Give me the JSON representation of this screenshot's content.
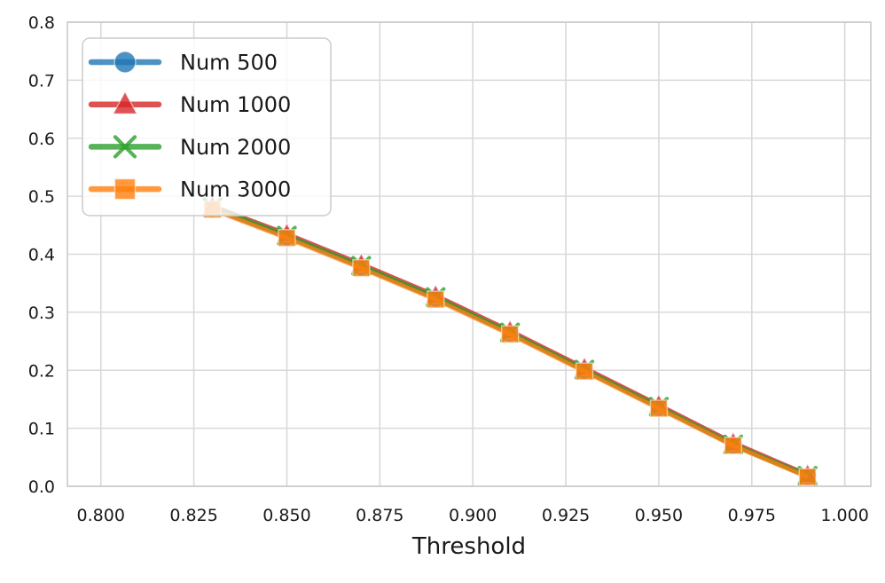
{
  "chart_data": {
    "type": "line",
    "title": "",
    "xlabel": "Threshold",
    "ylabel": "",
    "xlim": [
      0.791,
      1.007
    ],
    "ylim": [
      0.0,
      0.8
    ],
    "grid": true,
    "grid_color": "#d9d9d9",
    "spine_color": "#cacaca",
    "background_color": "#ffffff",
    "text_color": "#1a1a1a",
    "x_ticks": [
      0.8,
      0.825,
      0.85,
      0.875,
      0.9,
      0.925,
      0.95,
      0.975,
      1.0
    ],
    "x_tick_labels": [
      "0.800",
      "0.825",
      "0.850",
      "0.875",
      "0.900",
      "0.925",
      "0.950",
      "0.975",
      "1.000"
    ],
    "y_ticks": [
      0.0,
      0.1,
      0.2,
      0.3,
      0.4,
      0.5,
      0.6,
      0.7,
      0.8
    ],
    "y_tick_labels": [
      "0.0",
      "0.1",
      "0.2",
      "0.3",
      "0.4",
      "0.5",
      "0.6",
      "0.7",
      "0.8"
    ],
    "x": [
      0.83,
      0.85,
      0.87,
      0.89,
      0.91,
      0.93,
      0.95,
      0.97,
      0.99
    ],
    "series": [
      {
        "name": "Num 500",
        "color": "#1f77b4",
        "marker": "circle",
        "values": [
          0.479,
          0.43,
          0.378,
          0.324,
          0.264,
          0.2,
          0.136,
          0.071,
          0.017
        ]
      },
      {
        "name": "Num 1000",
        "color": "#d62728",
        "marker": "triangle",
        "values": [
          0.483,
          0.435,
          0.383,
          0.329,
          0.268,
          0.204,
          0.14,
          0.075,
          0.02
        ]
      },
      {
        "name": "Num 2000",
        "color": "#2ca02c",
        "marker": "x",
        "values": [
          0.481,
          0.432,
          0.38,
          0.326,
          0.265,
          0.201,
          0.137,
          0.072,
          0.018
        ]
      },
      {
        "name": "Num 3000",
        "color": "#ff7f0e",
        "marker": "square",
        "values": [
          0.477,
          0.428,
          0.376,
          0.322,
          0.262,
          0.198,
          0.134,
          0.07,
          0.016
        ]
      }
    ],
    "series_opacity": 0.8,
    "legend": {
      "position": "upper-left",
      "entries": [
        "Num 500",
        "Num 1000",
        "Num 2000",
        "Num 3000"
      ],
      "background": "#ffffff",
      "background_opacity": 0.8,
      "border_color": "#cccccc"
    }
  }
}
